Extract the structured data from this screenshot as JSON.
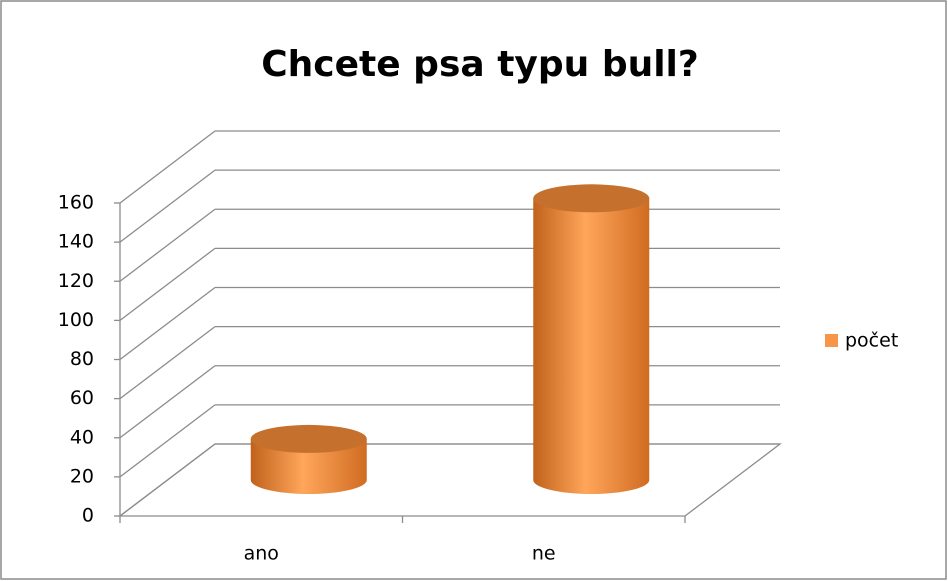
{
  "chart_data": {
    "type": "bar",
    "title": "Chcete psa typu bull?",
    "categories": [
      "ano",
      "ne"
    ],
    "series": [
      {
        "name": "počet",
        "color": "#f79646",
        "values": [
          21,
          144
        ]
      }
    ],
    "ylim": [
      0,
      160
    ],
    "yticks": [
      0,
      20,
      40,
      60,
      80,
      100,
      120,
      140,
      160
    ],
    "grid": true,
    "legend": "right",
    "style": "3d-cylinder"
  }
}
